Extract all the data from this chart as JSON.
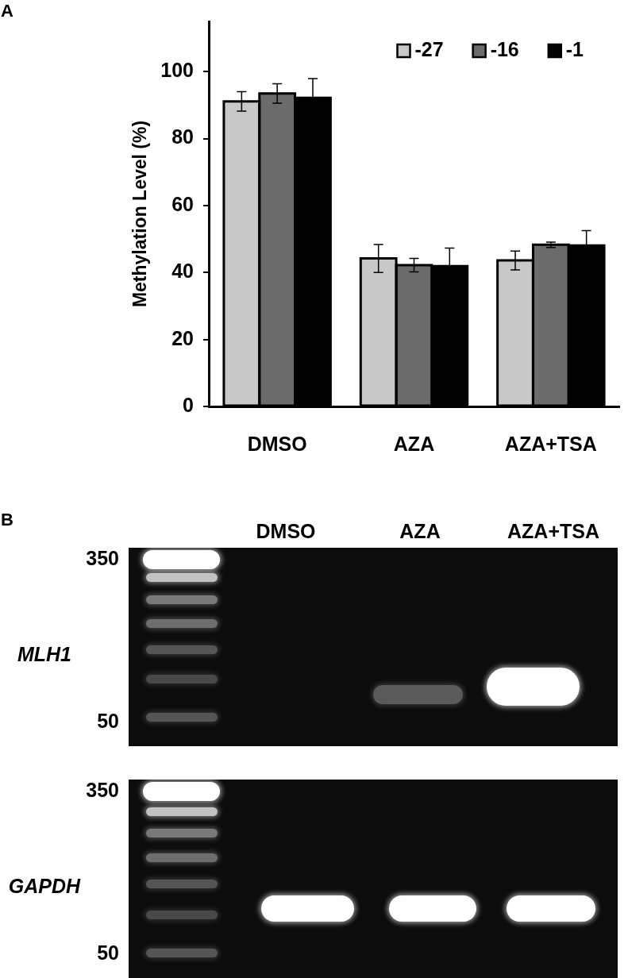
{
  "chart_data": [
    {
      "type": "bar",
      "annotations": [
        "A"
      ],
      "categories": [
        "DMSO",
        "AZA",
        "AZA+TSA"
      ],
      "ylabel": "Methylation Level (%)",
      "ylim": [
        0,
        115
      ],
      "yticks": [
        0,
        20,
        40,
        60,
        80,
        100
      ],
      "legend": "top right",
      "series": [
        {
          "name": "-27",
          "color": "#c8c8c8",
          "values": [
            91.1,
            44.2,
            43.6
          ],
          "errors": [
            2.9,
            4.2,
            2.8
          ]
        },
        {
          "name": "-16",
          "color": "#6b6b6b",
          "values": [
            93.5,
            42.2,
            48.3
          ],
          "errors": [
            2.9,
            2,
            0.8
          ]
        },
        {
          "name": "-1",
          "color": "#000000",
          "values": [
            92.2,
            41.9,
            48.1
          ],
          "errors": [
            5.7,
            5.4,
            4.4
          ]
        }
      ]
    },
    {
      "type": "other",
      "title": "B",
      "categories": [
        "DMSO",
        "AZA",
        "AZA+TSA"
      ],
      "y_categories": [
        "MLH1"
      ],
      "annotations": [
        "350",
        "50"
      ]
    },
    {
      "type": "other",
      "y_categories": [
        "GAPDH"
      ],
      "annotations": [
        "350",
        "50"
      ]
    }
  ]
}
